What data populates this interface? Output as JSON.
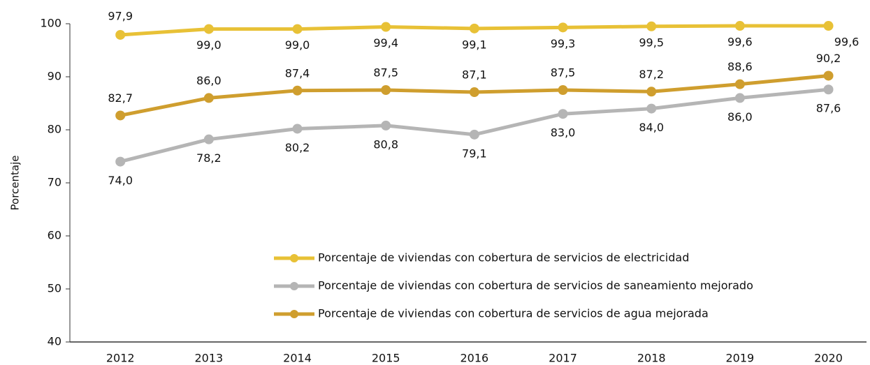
{
  "chart_data": {
    "type": "line",
    "y_label": "Porcentaje",
    "x": [
      2012,
      2013,
      2014,
      2015,
      2016,
      2017,
      2018,
      2019,
      2020
    ],
    "xlim": [
      2011.43,
      2020.43
    ],
    "ylim": [
      40,
      100
    ],
    "yticks": [
      40,
      50,
      60,
      70,
      80,
      90,
      100
    ],
    "grid": false,
    "series": [
      {
        "name": "Porcentaje de viviendas con cobertura de servicios de electricidad",
        "color": "#e8c136",
        "values": [
          97.9,
          99.0,
          99.0,
          99.4,
          99.1,
          99.3,
          99.5,
          99.6,
          99.6
        ],
        "value_labels": [
          "97,9",
          "99,0",
          "99,0",
          "99,4",
          "99,1",
          "99,3",
          "99,5",
          "99,6",
          "99,6"
        ]
      },
      {
        "name": "Porcentaje de viviendas con cobertura de servicios de saneamiento mejorado",
        "color": "#b5b5b5",
        "values": [
          74.0,
          78.2,
          80.2,
          80.8,
          79.1,
          83.0,
          84.0,
          86.0,
          87.6
        ],
        "value_labels": [
          "74,0",
          "78,2",
          "80,2",
          "80,8",
          "79,1",
          "83,0",
          "84,0",
          "86,0",
          "87,6"
        ]
      },
      {
        "name": "Porcentaje de viviendas con cobertura de servicios de agua mejorada",
        "color": "#cf9e2e",
        "values": [
          82.7,
          86.0,
          87.4,
          87.5,
          87.1,
          87.5,
          87.2,
          88.6,
          90.2
        ],
        "value_labels": [
          "82,7",
          "86,0",
          "87,4",
          "87,5",
          "87,1",
          "87,5",
          "87,2",
          "88,6",
          "90,2"
        ]
      }
    ]
  }
}
